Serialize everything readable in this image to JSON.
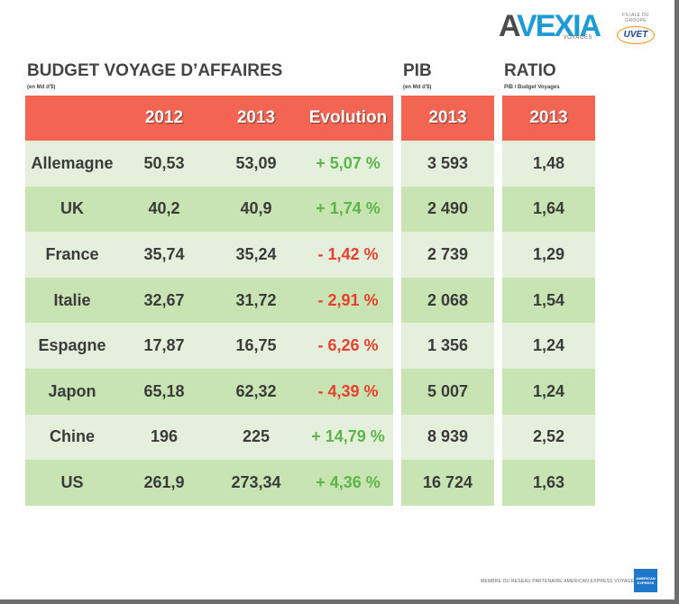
{
  "brand": {
    "logo_main": {
      "a": "A",
      "rest": "VEXIA",
      "sub": "VOYAGES"
    },
    "logo_group": {
      "tag": "FILIALE DU GROUPE",
      "name": "UVET"
    },
    "footer": "MEMBRE DU RESEAU PARTENAIRE AMERICAN EXPRESS VOYAGES",
    "partner_badge": "AMERICAN EXPRESS",
    "colors": {
      "header_red": "#f26553",
      "row_light": "#e4efdc",
      "row_dark": "#c9e4b3",
      "positive": "#5cb547",
      "negative": "#e8402e"
    }
  },
  "budget": {
    "title": "BUDGET VOYAGE D’AFFAIRES",
    "unit": "(en Md d'$)",
    "headers": [
      "2012",
      "2013",
      "Evolution"
    ]
  },
  "pib": {
    "title": "PIB",
    "unit": "(en Md d'$)",
    "header": "2013"
  },
  "ratio": {
    "title": "RATIO",
    "unit": "PIB / Budget Voyages",
    "header": "2013"
  },
  "rows": [
    {
      "country": "Allemagne",
      "y2012": "50,53",
      "y2013": "53,09",
      "evolution": "+ 5,07 %",
      "trend": "pos",
      "pib": "3 593",
      "ratio": "1,48"
    },
    {
      "country": "UK",
      "y2012": "40,2",
      "y2013": "40,9",
      "evolution": "+ 1,74 %",
      "trend": "pos",
      "pib": "2 490",
      "ratio": "1,64"
    },
    {
      "country": "France",
      "y2012": "35,74",
      "y2013": "35,24",
      "evolution": "- 1,42 %",
      "trend": "neg",
      "pib": "2 739",
      "ratio": "1,29"
    },
    {
      "country": "Italie",
      "y2012": "32,67",
      "y2013": "31,72",
      "evolution": "- 2,91 %",
      "trend": "neg",
      "pib": "2 068",
      "ratio": "1,54"
    },
    {
      "country": "Espagne",
      "y2012": "17,87",
      "y2013": "16,75",
      "evolution": "- 6,26 %",
      "trend": "neg",
      "pib": "1 356",
      "ratio": "1,24"
    },
    {
      "country": "Japon",
      "y2012": "65,18",
      "y2013": "62,32",
      "evolution": "- 4,39 %",
      "trend": "neg",
      "pib": "5 007",
      "ratio": "1,24"
    },
    {
      "country": "Chine",
      "y2012": "196",
      "y2013": "225",
      "evolution": "+ 14,79 %",
      "trend": "pos",
      "pib": "8 939",
      "ratio": "2,52"
    },
    {
      "country": "US",
      "y2012": "261,9",
      "y2013": "273,34",
      "evolution": "+ 4,36 %",
      "trend": "pos",
      "pib": "16 724",
      "ratio": "1,63"
    }
  ]
}
